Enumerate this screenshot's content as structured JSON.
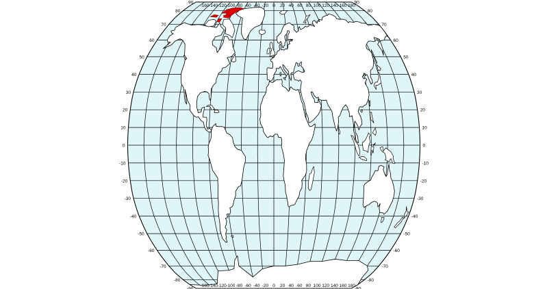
{
  "map": {
    "projection": "Robinson",
    "colors": {
      "ocean": "#dff5f8",
      "land": "#ffffff",
      "outline": "#000000",
      "highlight": "#e00000"
    },
    "highlighted_region": "Canadian Arctic Archipelago",
    "graticule": {
      "longitude_step": 20,
      "latitude_step": 10
    },
    "longitude_labels": [
      "-160",
      "-140",
      "-120",
      "-100",
      "-80",
      "-60",
      "-40",
      "-20",
      "0",
      "20",
      "40",
      "60",
      "80",
      "100",
      "120",
      "140",
      "160",
      "180"
    ],
    "latitude_labels": [
      "90",
      "80",
      "70",
      "60",
      "50",
      "40",
      "30",
      "20",
      "10",
      "0",
      "-10",
      "-20",
      "-30",
      "-40",
      "-50",
      "-60",
      "-70",
      "-80",
      "-90"
    ]
  }
}
